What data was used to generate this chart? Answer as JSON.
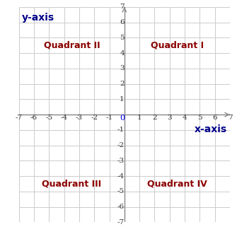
{
  "xlim": [
    -7,
    7
  ],
  "ylim": [
    -7,
    7
  ],
  "xticks": [
    -7,
    -6,
    -5,
    -4,
    -3,
    -2,
    -1,
    1,
    2,
    3,
    4,
    5,
    6,
    7
  ],
  "yticks": [
    -7,
    -6,
    -5,
    -4,
    -3,
    -2,
    -1,
    1,
    2,
    3,
    4,
    5,
    6,
    7
  ],
  "xlabel": "x-axis",
  "ylabel": "y-axis",
  "quadrant_labels": [
    "Quadrant I",
    "Quadrant II",
    "Quadrant III",
    "Quadrant IV"
  ],
  "quadrant_positions": [
    [
      3.5,
      4.5
    ],
    [
      -3.5,
      4.5
    ],
    [
      -3.5,
      -4.5
    ],
    [
      3.5,
      -4.5
    ]
  ],
  "quadrant_color": "#8B0000",
  "axis_label_color": "#00008B",
  "zero_color": "#0000FF",
  "background_color": "#ffffff",
  "grid_color": "#cccccc",
  "axis_color": "#888888",
  "font_size_quadrant": 9,
  "font_size_axis_label": 10,
  "font_size_ticks": 7.5,
  "font_size_zero": 8
}
